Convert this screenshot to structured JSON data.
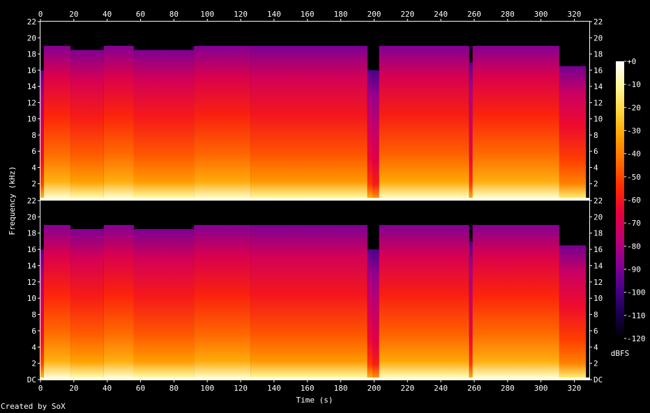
{
  "chart_data": {
    "type": "heatmap",
    "title": "",
    "xlabel": "Time (s)",
    "ylabel": "Frequency (kHz)",
    "xlim": [
      0,
      329
    ],
    "x_ticks": [
      "0",
      "20",
      "40",
      "60",
      "80",
      "100",
      "120",
      "140",
      "160",
      "180",
      "200",
      "220",
      "240",
      "260",
      "280",
      "300",
      "320"
    ],
    "x_tick_values": [
      0,
      20,
      40,
      60,
      80,
      100,
      120,
      140,
      160,
      180,
      200,
      220,
      240,
      260,
      280,
      300,
      320
    ],
    "channels": [
      {
        "name": "",
        "ylim": [
          0,
          22
        ],
        "y_ticks": [
          "22",
          "20",
          "18",
          "16",
          "14",
          "12",
          "10",
          "8",
          "6",
          "4",
          "2"
        ],
        "y_tick_values": [
          22,
          20,
          18,
          16,
          14,
          12,
          10,
          8,
          6,
          4,
          2
        ]
      },
      {
        "name": "",
        "ylim": [
          0,
          22
        ],
        "y_ticks": [
          "22",
          "20",
          "18",
          "16",
          "14",
          "12",
          "10",
          "8",
          "6",
          "4",
          "2",
          "DC"
        ],
        "y_tick_values": [
          22,
          20,
          18,
          16,
          14,
          12,
          10,
          8,
          6,
          4,
          2,
          0
        ]
      }
    ],
    "segments": [
      {
        "start": 0,
        "end": 2,
        "cutoff_khz": 16,
        "level": 0.3
      },
      {
        "start": 2,
        "end": 18,
        "cutoff_khz": 19,
        "level": 0.75
      },
      {
        "start": 18,
        "end": 38,
        "cutoff_khz": 18.5,
        "level": 0.68
      },
      {
        "start": 38,
        "end": 56,
        "cutoff_khz": 19,
        "level": 0.74
      },
      {
        "start": 56,
        "end": 92,
        "cutoff_khz": 18.5,
        "level": 0.66
      },
      {
        "start": 92,
        "end": 126,
        "cutoff_khz": 19,
        "level": 0.72
      },
      {
        "start": 126,
        "end": 196,
        "cutoff_khz": 19,
        "level": 0.64
      },
      {
        "start": 196,
        "end": 199,
        "cutoff_khz": 16,
        "level": 0.25
      },
      {
        "start": 199,
        "end": 203,
        "cutoff_khz": 16,
        "level": 0.12
      },
      {
        "start": 203,
        "end": 257,
        "cutoff_khz": 19,
        "level": 0.7
      },
      {
        "start": 257,
        "end": 259,
        "cutoff_khz": 17,
        "level": 0.22
      },
      {
        "start": 259,
        "end": 311,
        "cutoff_khz": 19,
        "level": 0.74
      },
      {
        "start": 311,
        "end": 327,
        "cutoff_khz": 16.5,
        "level": 0.55
      }
    ],
    "colorbar": {
      "label": "dBFS",
      "range": [
        -120,
        0
      ],
      "ticks": [
        "+0",
        "-10",
        "-20",
        "-30",
        "-40",
        "-50",
        "-60",
        "-70",
        "-80",
        "-90",
        "-100",
        "-110",
        "-120"
      ],
      "tick_values": [
        0,
        -10,
        -20,
        -30,
        -40,
        -50,
        -60,
        -70,
        -80,
        -90,
        -100,
        -110,
        -120
      ],
      "colors": [
        "#000000",
        "#1a0050",
        "#4b008c",
        "#8a0096",
        "#c2006e",
        "#e8003c",
        "#ff2a00",
        "#ff6a00",
        "#ffa100",
        "#ffd53a",
        "#fff79a",
        "#ffffff"
      ]
    }
  },
  "footer": "Created by SoX"
}
